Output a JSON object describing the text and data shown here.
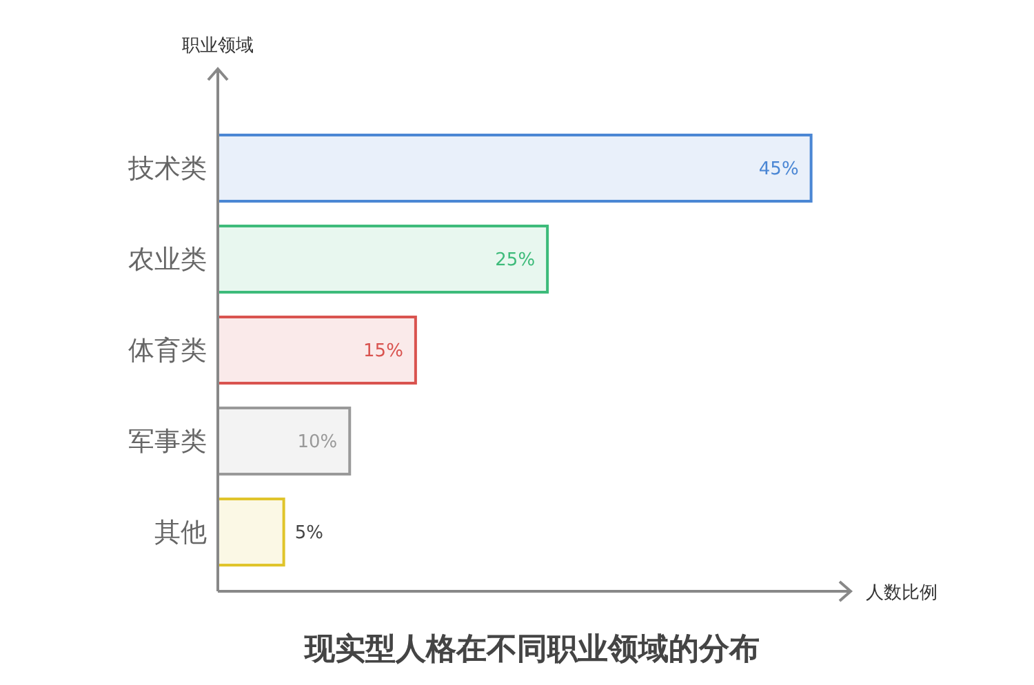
{
  "chart_data": {
    "type": "bar",
    "orientation": "horizontal",
    "title": "现实型人格在不同职业领域的分布",
    "xlabel": "人数比例",
    "ylabel": "职业领域",
    "categories": [
      "技术类",
      "农业类",
      "体育类",
      "军事类",
      "其他"
    ],
    "values": [
      45,
      25,
      15,
      10,
      5
    ],
    "value_labels": [
      "45%",
      "25%",
      "15%",
      "10%",
      "5%"
    ],
    "colors": [
      "#4a86d4",
      "#3dbb7a",
      "#d9534f",
      "#999999",
      "#e0c42a"
    ],
    "xlim": [
      0,
      48
    ],
    "tick_labels": "y"
  }
}
